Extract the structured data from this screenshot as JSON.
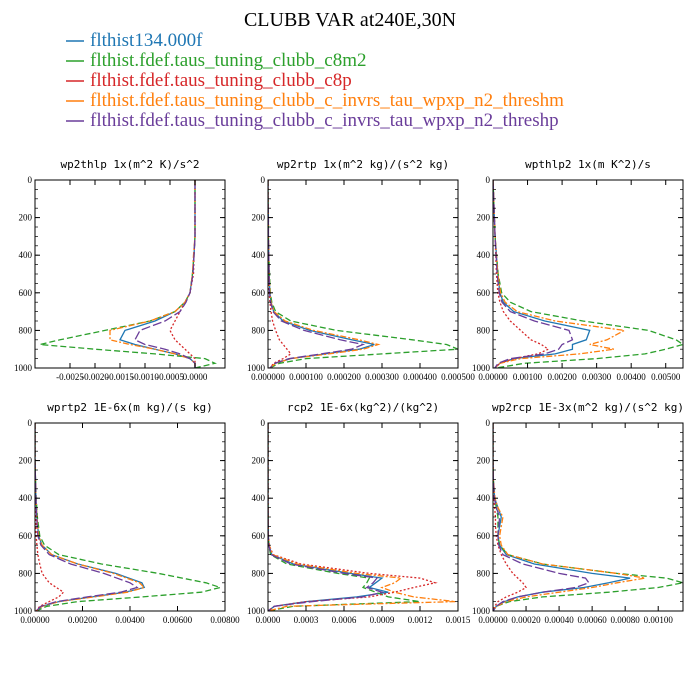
{
  "figure": {
    "title": "CLUBB VAR at240E,30N",
    "legend": [
      {
        "label": "flthist134.000f",
        "color": "#1f77b4",
        "dash": "solid"
      },
      {
        "label": "flthist.fdef.taus_tuning_clubb_c8m2",
        "color": "#2ca02c",
        "dash": "dashed"
      },
      {
        "label": "flthist.fdef.taus_tuning_clubb_c8p",
        "color": "#d62728",
        "dash": "dotted"
      },
      {
        "label": "flthist.fdef.taus_tuning_clubb_c_invrs_tau_wpxp_n2_threshm",
        "color": "#ff7f0e",
        "dash": "dashdot"
      },
      {
        "label": "flthist.fdef.taus_tuning_clubb_c_invrs_tau_wpxp_n2_threshp",
        "color": "#6a3d9a",
        "dash": "longdash"
      }
    ]
  },
  "chart_data": [
    {
      "type": "line",
      "title": "wp2thlp  1x(m^2 K)/s^2",
      "xlim": [
        -0.0032,
        0.0006
      ],
      "ylim": [
        0,
        1000
      ],
      "y_inverted": true,
      "xticks": [
        "-0.0025",
        "-0.0020",
        "-0.0015",
        "-0.0010",
        "-0.0005",
        "0.0000"
      ],
      "xtick_values": [
        -0.0025,
        -0.002,
        -0.0015,
        -0.001,
        -0.0005,
        0.0
      ],
      "yticks": [
        0,
        200,
        400,
        600,
        800,
        1000
      ],
      "y": [
        0,
        100,
        200,
        300,
        400,
        500,
        600,
        650,
        700,
        750,
        800,
        850,
        875,
        900,
        925,
        950,
        975,
        1000
      ],
      "series": [
        {
          "values": [
            0.0,
            0.0,
            0.0,
            0.0,
            -2e-05,
            -5e-05,
            -0.0001,
            -0.0002,
            -0.0004,
            -0.0008,
            -0.0014,
            -0.0015,
            -0.0012,
            -0.0008,
            -0.0004,
            -0.0001,
            0.0,
            0.0
          ]
        },
        {
          "values": [
            0.0,
            0.0,
            0.0,
            0.0,
            -2e-05,
            -5e-05,
            -0.0001,
            -0.0002,
            -0.0004,
            -0.0009,
            -0.0018,
            -0.0027,
            -0.0031,
            -0.002,
            -0.0008,
            0.0002,
            0.0004,
            0.0
          ]
        },
        {
          "values": [
            0.0,
            0.0,
            0.0,
            0.0,
            -2e-05,
            -3e-05,
            -0.0001,
            -0.0002,
            -0.0003,
            -0.0004,
            -0.0005,
            -0.0004,
            -0.0003,
            -0.0002,
            -0.0001,
            0.0,
            0.0,
            0.0
          ]
        },
        {
          "values": [
            0.0,
            0.0,
            0.0,
            0.0,
            -3e-05,
            -5e-05,
            -0.0001,
            -0.0002,
            -0.0004,
            -0.0009,
            -0.0017,
            -0.0017,
            -0.0013,
            -0.0008,
            -0.0004,
            -0.0001,
            0.0,
            0.0
          ]
        },
        {
          "values": [
            0.0,
            0.0,
            0.0,
            0.0,
            -2e-05,
            -4e-05,
            -0.0001,
            -0.00018,
            -0.0003,
            -0.0006,
            -0.0011,
            -0.0012,
            -0.001,
            -0.0006,
            -0.0003,
            -0.0001,
            0.0,
            0.0
          ]
        }
      ]
    },
    {
      "type": "line",
      "title": "wp2rtp  1x(m^2 kg)/(s^2 kg)",
      "xlim": [
        0,
        0.0005
      ],
      "ylim": [
        0,
        1000
      ],
      "y_inverted": true,
      "xticks": [
        "0.000000",
        "0.000100",
        "0.000200",
        "0.000300",
        "0.000400",
        "0.000500"
      ],
      "xtick_values": [
        0.0,
        0.0001,
        0.0002,
        0.0003,
        0.0004,
        0.0005
      ],
      "yticks": [
        0,
        200,
        400,
        600,
        800,
        1000
      ],
      "y": [
        0,
        100,
        200,
        300,
        400,
        500,
        600,
        650,
        700,
        750,
        800,
        850,
        875,
        900,
        925,
        950,
        975,
        1000
      ],
      "series": [
        {
          "values": [
            0,
            0,
            1e-06,
            1e-06,
            2e-06,
            3e-06,
            5e-06,
            8e-06,
            1.5e-05,
            4e-05,
            0.00011,
            0.00022,
            0.00028,
            0.00024,
            0.00015,
            6e-05,
            2e-05,
            5e-06
          ]
        },
        {
          "values": [
            0,
            0,
            1e-06,
            1e-06,
            2e-06,
            4e-06,
            6e-06,
            1e-05,
            2e-05,
            6e-05,
            0.00018,
            0.00038,
            0.00047,
            0.0005,
            0.0003,
            0.0001,
            3e-05,
            5e-06
          ]
        },
        {
          "values": [
            0,
            0,
            1e-06,
            1e-06,
            2e-06,
            2e-06,
            3e-06,
            5e-06,
            8e-06,
            1.2e-05,
            2e-05,
            3e-05,
            4e-05,
            5e-05,
            6e-05,
            4e-05,
            1.5e-05,
            5e-06
          ]
        },
        {
          "values": [
            0,
            0,
            1e-06,
            1e-06,
            2e-06,
            3e-06,
            5e-06,
            8e-06,
            1.6e-05,
            4.5e-05,
            0.00012,
            0.00024,
            0.00029,
            0.00025,
            0.00016,
            6e-05,
            2e-05,
            5e-06
          ]
        },
        {
          "values": [
            0,
            0,
            1e-06,
            1e-06,
            2e-06,
            3e-06,
            4e-06,
            7e-06,
            1.3e-05,
            3.5e-05,
            9.5e-05,
            0.00019,
            0.00025,
            0.00022,
            0.00014,
            5.5e-05,
            1.8e-05,
            5e-06
          ]
        }
      ]
    },
    {
      "type": "line",
      "title": "wpthlp2  1x(m K^2)/s",
      "xlim": [
        0,
        0.0055
      ],
      "ylim": [
        0,
        1000
      ],
      "y_inverted": true,
      "xticks": [
        "0.00000",
        "0.00100",
        "0.00200",
        "0.00300",
        "0.00400",
        "0.00500"
      ],
      "xtick_values": [
        0.0,
        0.001,
        0.002,
        0.003,
        0.004,
        0.005
      ],
      "yticks": [
        0,
        200,
        400,
        600,
        800,
        1000
      ],
      "y": [
        0,
        100,
        200,
        300,
        400,
        500,
        600,
        650,
        700,
        750,
        800,
        850,
        875,
        900,
        925,
        950,
        975,
        1000
      ],
      "series": [
        {
          "values": [
            0,
            2e-05,
            4e-05,
            6e-05,
            0.0001,
            0.00014,
            0.0002,
            0.0003,
            0.0006,
            0.0015,
            0.0028,
            0.0027,
            0.0023,
            0.0023,
            0.0018,
            0.0006,
            0.0002,
            5e-05
          ]
        },
        {
          "values": [
            0,
            2e-05,
            4e-05,
            6e-05,
            0.0001,
            0.00015,
            0.00025,
            0.0005,
            0.0011,
            0.0026,
            0.0045,
            0.0053,
            0.0055,
            0.005,
            0.0044,
            0.003,
            0.0009,
            0.0001
          ]
        },
        {
          "values": [
            0,
            2e-05,
            4e-05,
            6e-05,
            8e-05,
            0.0001,
            0.00014,
            0.0002,
            0.0003,
            0.0005,
            0.0008,
            0.0011,
            0.0014,
            0.0016,
            0.0013,
            0.0006,
            0.0002,
            5e-05
          ]
        },
        {
          "values": [
            0,
            2e-05,
            4e-05,
            6e-05,
            0.0001,
            0.00014,
            0.00022,
            0.00035,
            0.0007,
            0.0018,
            0.0038,
            0.0033,
            0.0028,
            0.0035,
            0.0025,
            0.0008,
            0.0002,
            5e-05
          ]
        },
        {
          "values": [
            0,
            2e-05,
            4e-05,
            6e-05,
            9e-05,
            0.00012,
            0.00018,
            0.00026,
            0.0005,
            0.0012,
            0.0022,
            0.0023,
            0.002,
            0.0019,
            0.0015,
            0.0005,
            0.00015,
            5e-05
          ]
        }
      ]
    },
    {
      "type": "line",
      "title": "wprtp2  1E-6x(m kg)/(s kg)",
      "xlim": [
        0,
        0.008
      ],
      "ylim": [
        0,
        1000
      ],
      "y_inverted": true,
      "xticks": [
        "0.00000",
        "0.00200",
        "0.00400",
        "0.00600",
        "0.00800"
      ],
      "xtick_values": [
        0.0,
        0.002,
        0.004,
        0.006,
        0.008
      ],
      "yticks": [
        0,
        200,
        400,
        600,
        800,
        1000
      ],
      "y": [
        0,
        100,
        200,
        300,
        400,
        500,
        600,
        650,
        700,
        750,
        800,
        850,
        875,
        900,
        925,
        950,
        975,
        1000
      ],
      "series": [
        {
          "values": [
            0,
            0,
            0,
            2e-05,
            4e-05,
            8e-05,
            0.00015,
            0.0003,
            0.0007,
            0.0018,
            0.0034,
            0.0045,
            0.0046,
            0.0038,
            0.0024,
            0.001,
            0.0003,
            5e-05
          ]
        },
        {
          "values": [
            0,
            0,
            0,
            2e-05,
            5e-05,
            0.0001,
            0.0002,
            0.0004,
            0.001,
            0.0028,
            0.0052,
            0.0072,
            0.0078,
            0.007,
            0.0045,
            0.0018,
            0.0005,
            5e-05
          ]
        },
        {
          "values": [
            0,
            0,
            0,
            1e-05,
            2e-05,
            3e-05,
            5e-05,
            8e-05,
            0.00012,
            0.0002,
            0.0003,
            0.0006,
            0.0009,
            0.0012,
            0.001,
            0.0006,
            0.0002,
            5e-05
          ]
        },
        {
          "values": [
            0,
            0,
            0,
            2e-05,
            4e-05,
            8e-05,
            0.00015,
            0.0003,
            0.0007,
            0.0018,
            0.0033,
            0.0044,
            0.0046,
            0.0039,
            0.0025,
            0.001,
            0.0003,
            5e-05
          ]
        },
        {
          "values": [
            0,
            0,
            0,
            2e-05,
            4e-05,
            7e-05,
            0.00012,
            0.00025,
            0.0006,
            0.0015,
            0.0029,
            0.004,
            0.0043,
            0.0036,
            0.0022,
            0.0009,
            0.00025,
            5e-05
          ]
        }
      ]
    },
    {
      "type": "line",
      "title": "rcp2  1E-6x(kg^2)/(kg^2)",
      "xlim": [
        0,
        0.0015
      ],
      "ylim": [
        0,
        1000
      ],
      "y_inverted": true,
      "xticks": [
        "0.0000",
        "0.0003",
        "0.0006",
        "0.0009",
        "0.0012",
        "0.0015"
      ],
      "xtick_values": [
        0.0,
        0.0003,
        0.0006,
        0.0009,
        0.0012,
        0.0015
      ],
      "yticks": [
        0,
        200,
        400,
        600,
        800,
        1000
      ],
      "y": [
        0,
        100,
        200,
        300,
        400,
        500,
        600,
        650,
        700,
        750,
        800,
        825,
        850,
        875,
        900,
        925,
        950,
        975,
        1000
      ],
      "series": [
        {
          "values": [
            0,
            0,
            0,
            0,
            0,
            1e-06,
            3e-06,
            8e-06,
            3e-05,
            0.0002,
            0.00065,
            0.0009,
            0.00085,
            0.0008,
            0.00095,
            0.0007,
            0.0003,
            5e-05,
            0
          ]
        },
        {
          "values": [
            0,
            0,
            0,
            0,
            0,
            1e-06,
            2e-06,
            6e-06,
            2e-05,
            0.00015,
            0.00055,
            0.0008,
            0.00078,
            0.00075,
            0.00085,
            0.00095,
            0.0012,
            0.0002,
            0
          ]
        },
        {
          "values": [
            0,
            0,
            0,
            0,
            0,
            1e-06,
            3e-06,
            1e-05,
            4e-05,
            0.00026,
            0.0008,
            0.0012,
            0.00132,
            0.00115,
            0.001,
            0.0008,
            0.0003,
            5e-05,
            0
          ]
        },
        {
          "values": [
            0,
            0,
            0,
            0,
            0,
            1e-06,
            3e-06,
            9e-06,
            3.5e-05,
            0.00023,
            0.0007,
            0.00105,
            0.001,
            0.0009,
            0.001,
            0.00115,
            0.00148,
            0.00015,
            0
          ]
        },
        {
          "values": [
            0,
            0,
            0,
            0,
            0,
            1e-06,
            2e-06,
            6e-06,
            2.5e-05,
            0.00018,
            0.0006,
            0.00086,
            0.00083,
            0.00078,
            0.0009,
            0.00075,
            0.00035,
            5e-05,
            0
          ]
        }
      ]
    },
    {
      "type": "line",
      "title": "wp2rcp  1E-3x(m^2 kg)/(s^2 kg)",
      "xlim": [
        0,
        0.00115
      ],
      "ylim": [
        0,
        1000
      ],
      "y_inverted": true,
      "xticks": [
        "0.00000",
        "0.00020",
        "0.00040",
        "0.00060",
        "0.00080",
        "0.00100"
      ],
      "xtick_values": [
        0.0,
        0.0002,
        0.0004,
        0.0006,
        0.0008,
        0.001
      ],
      "yticks": [
        0,
        200,
        400,
        600,
        800,
        1000
      ],
      "y": [
        0,
        100,
        200,
        300,
        400,
        450,
        500,
        550,
        600,
        650,
        700,
        750,
        800,
        825,
        850,
        875,
        900,
        925,
        950,
        975,
        1000
      ],
      "series": [
        {
          "values": [
            0,
            0,
            0,
            2e-06,
            1e-05,
            3e-05,
            5e-05,
            4e-05,
            3e-05,
            4e-05,
            8e-05,
            0.00025,
            0.0006,
            0.00083,
            0.0007,
            0.00055,
            0.0003,
            0.00015,
            7e-05,
            2e-05,
            0
          ]
        },
        {
          "values": [
            0,
            0,
            0,
            2e-06,
            1e-05,
            2e-05,
            3e-05,
            3e-05,
            3e-05,
            4e-05,
            9e-05,
            0.0003,
            0.00075,
            0.00105,
            0.00115,
            0.001,
            0.0007,
            0.0003,
            0.0001,
            2e-05,
            0
          ]
        },
        {
          "values": [
            0,
            0,
            0,
            2e-06,
            5e-06,
            1e-05,
            1.5e-05,
            1.5e-05,
            2e-05,
            3e-05,
            5e-05,
            8e-05,
            0.00012,
            0.00015,
            0.00018,
            0.0002,
            0.00015,
            8e-05,
            3e-05,
            1e-05,
            0
          ]
        },
        {
          "values": [
            0,
            0,
            0,
            2e-06,
            1.2e-05,
            3e-05,
            6e-05,
            5e-05,
            4e-05,
            5e-05,
            9e-05,
            0.0003,
            0.00075,
            0.00092,
            0.00075,
            0.0006,
            0.0004,
            0.0002,
            8e-05,
            2e-05,
            0
          ]
        },
        {
          "values": [
            0,
            0,
            0,
            2e-06,
            8e-06,
            2e-05,
            4e-05,
            3.5e-05,
            3e-05,
            3.5e-05,
            6e-05,
            0.00018,
            0.0004,
            0.00056,
            0.00058,
            0.0005,
            0.0003,
            0.00015,
            6e-05,
            2e-05,
            0
          ]
        }
      ]
    }
  ]
}
